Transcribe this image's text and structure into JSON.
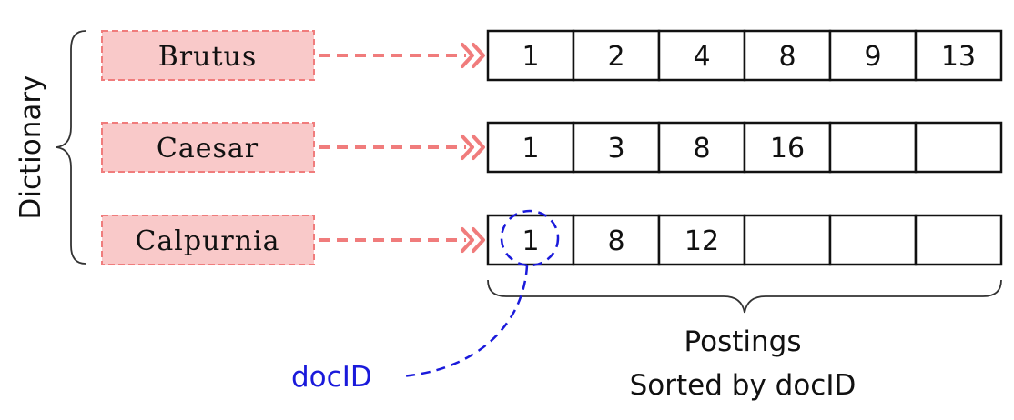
{
  "dictionary_label": "Dictionary",
  "terms": [
    {
      "name": "Brutus",
      "postings": [
        "1",
        "2",
        "4",
        "8",
        "9",
        "13"
      ]
    },
    {
      "name": "Caesar",
      "postings": [
        "1",
        "3",
        "8",
        "16",
        "",
        ""
      ]
    },
    {
      "name": "Calpurnia",
      "postings": [
        "1",
        "8",
        "12",
        "",
        "",
        ""
      ]
    }
  ],
  "postings_label": "Postings",
  "sorted_label": "Sorted by docID",
  "docid_label": "docID",
  "colors": {
    "term_fill": "#f9c9c9",
    "term_stroke": "#f07c7c",
    "arrow": "#f07c7c",
    "docid": "#1a1adb"
  }
}
